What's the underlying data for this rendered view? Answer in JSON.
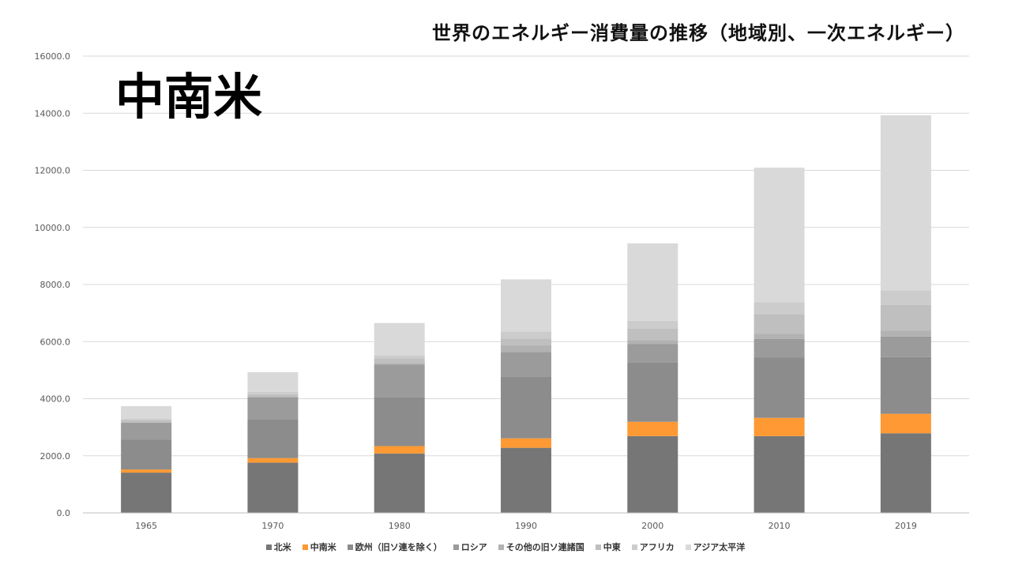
{
  "chart_data": {
    "type": "bar",
    "stacked": true,
    "title": "世界のエネルギー消費量の推移（地域別、一次エネルギー）",
    "overlay_label": "中南米",
    "categories": [
      "1965",
      "1970",
      "1980",
      "1990",
      "2000",
      "2010",
      "2019"
    ],
    "ylim": [
      0,
      16000
    ],
    "yticks": [
      "0.0",
      "2000.0",
      "4000.0",
      "6000.0",
      "8000.0",
      "10000.0",
      "12000.0",
      "14000.0",
      "16000.0"
    ],
    "legend_position": "bottom",
    "series": [
      {
        "name": "北米",
        "color": "#767676",
        "values": [
          1410,
          1760,
          2080,
          2280,
          2690,
          2690,
          2790
        ]
      },
      {
        "name": "中南米",
        "color": "#FF9933",
        "values": [
          110,
          160,
          260,
          330,
          500,
          640,
          680
        ]
      },
      {
        "name": "欧州（旧ソ連を除く）",
        "color": "#8C8C8C",
        "values": [
          1040,
          1370,
          1720,
          2170,
          2080,
          2110,
          1990
        ]
      },
      {
        "name": "ロシア",
        "color": "#9B9B9B",
        "values": [
          600,
          760,
          1130,
          860,
          640,
          660,
          720
        ]
      },
      {
        "name": "その他の旧ソ連諸国",
        "color": "#B2B2B2",
        "values": [
          20,
          30,
          60,
          230,
          140,
          180,
          210
        ]
      },
      {
        "name": "中東",
        "color": "#BFBFBF",
        "values": [
          60,
          80,
          170,
          240,
          410,
          690,
          900
        ]
      },
      {
        "name": "アフリカ",
        "color": "#CCCCCC",
        "values": [
          60,
          80,
          100,
          250,
          270,
          410,
          500
        ]
      },
      {
        "name": "アジア太平洋",
        "color": "#D9D9D9",
        "values": [
          440,
          690,
          1130,
          1820,
          2710,
          4710,
          6140
        ]
      }
    ]
  }
}
